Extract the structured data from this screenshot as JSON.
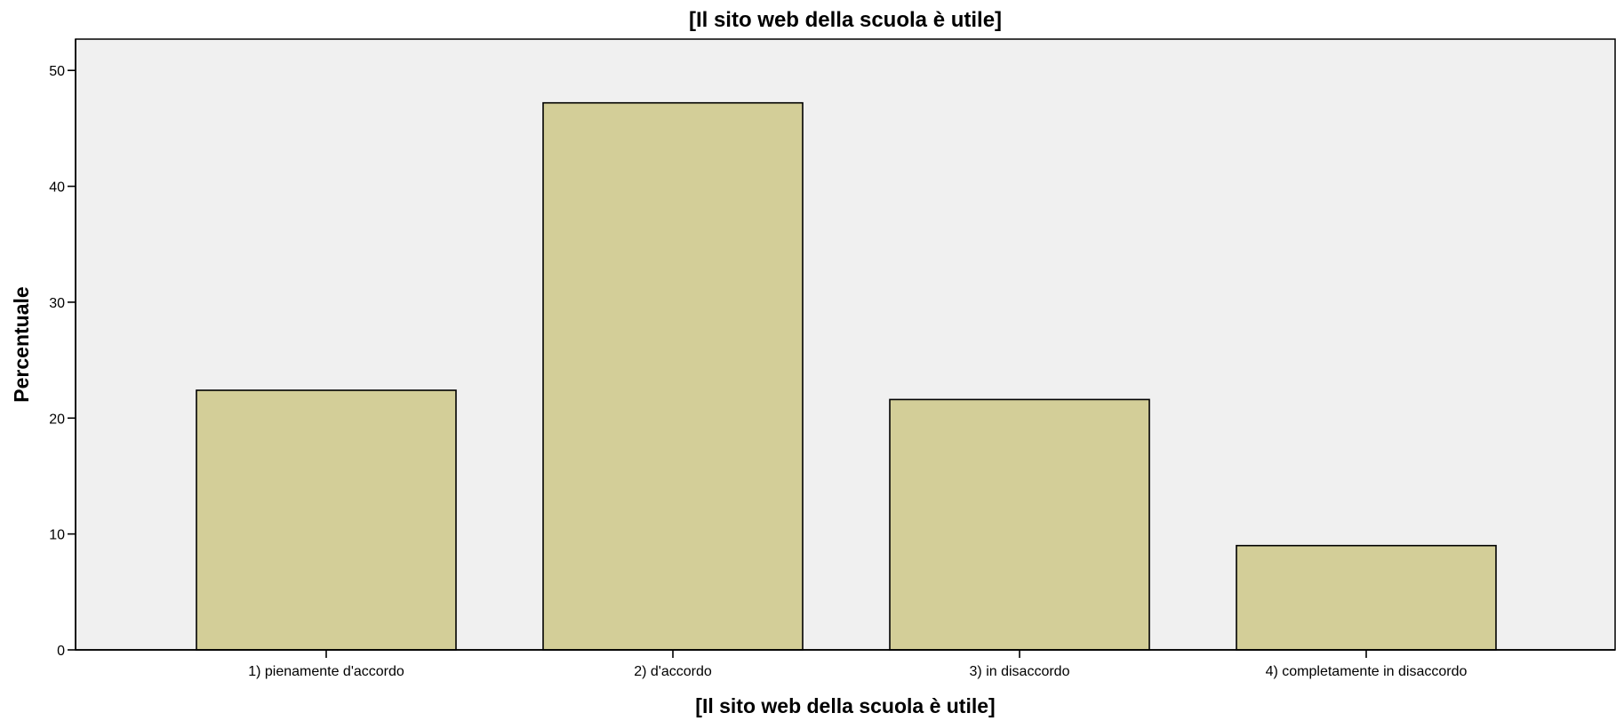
{
  "chart_data": {
    "type": "bar",
    "title": "[Il sito web della scuola è utile]",
    "xlabel": "[Il sito web della scuola è utile]",
    "ylabel": "Percentuale",
    "categories": [
      "1) pienamente d'accordo",
      "2) d'accordo",
      "3) in disaccordo",
      "4) completamente in disaccordo"
    ],
    "values": [
      22.4,
      47.2,
      21.6,
      9.0
    ],
    "ylim": [
      0,
      52.7
    ],
    "yticks": [
      0,
      10,
      20,
      30,
      40,
      50
    ],
    "grid": false,
    "legend": "none",
    "colors": {
      "bar_fill": "#d3ce98",
      "bar_stroke": "#000000",
      "plot_background": "#f0f0f0",
      "axis": "#000000"
    }
  }
}
